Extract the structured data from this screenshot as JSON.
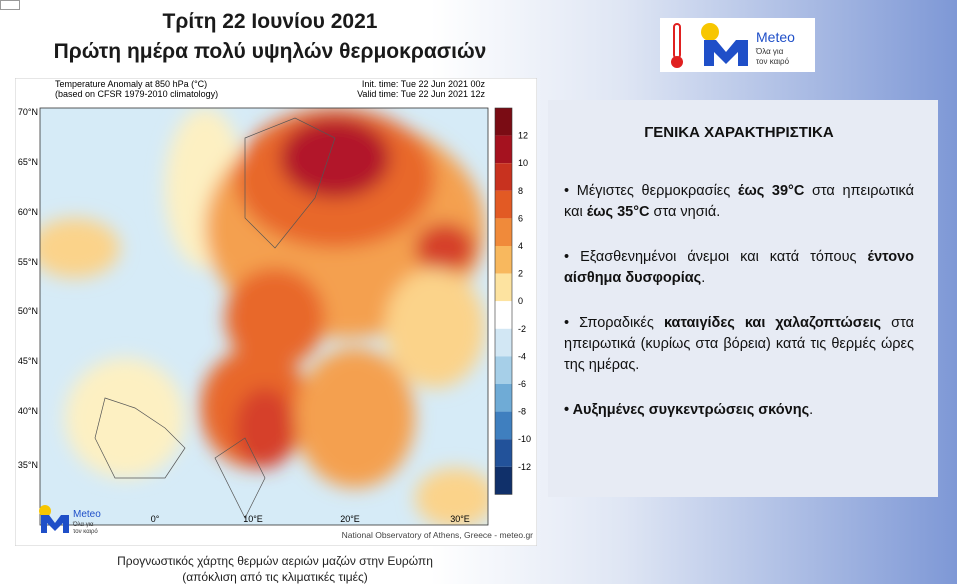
{
  "header": {
    "title": "Τρίτη 22 Ιουνίου 2021",
    "subtitle": "Πρώτη ημέρα πολύ υψηλών θερμοκρασιών"
  },
  "logo": {
    "name": "Meteo",
    "tagline": [
      "Όλα για",
      "τον καιρό"
    ]
  },
  "map": {
    "title_lines": [
      "Temperature Anomaly at 850 hPa (°C)",
      "(based on CFSR 1979-2010 climatology)"
    ],
    "init": "Init. time: Tue 22 Jun 2021 00z",
    "valid": "Valid time: Tue 22 Jun 2021 12z",
    "latitudes": [
      "70°N",
      "65°N",
      "60°N",
      "55°N",
      "50°N",
      "45°N",
      "40°N",
      "35°N"
    ],
    "longitudes": [
      "0°",
      "10°E",
      "20°E",
      "30°E"
    ],
    "colorbar": [
      12,
      10,
      8,
      6,
      4,
      2,
      0,
      -2,
      -4,
      -6,
      -8,
      -10,
      -12
    ],
    "credit": "National Observatory of Athens, Greece - meteo.gr",
    "logo": {
      "name": "Meteo",
      "tagline": [
        "Όλα για",
        "τον καιρό"
      ]
    }
  },
  "panel": {
    "heading": "ΓΕΝΙΚΑ ΧΑΡΑΚΤΗΡΙΣΤΙΚΑ",
    "bullets": [
      [
        {
          "text": "• Μέγιστες θερμοκρασίες "
        },
        {
          "text": "έως 39°C",
          "bold": true
        },
        {
          "text": " στα ηπειρωτικά και "
        },
        {
          "text": "έως 35°C",
          "bold": true
        },
        {
          "text": " στα νησιά."
        }
      ],
      [
        {
          "text": "• Εξασθενημένοι άνεμοι και κατά τόπους "
        },
        {
          "text": "έντονο αίσθημα δυσφορίας",
          "bold": true
        },
        {
          "text": "."
        }
      ],
      [
        {
          "text": "• Σποραδικές "
        },
        {
          "text": "καταιγίδες και χαλαζοπτώσεις",
          "bold": true
        },
        {
          "text": " στα ηπειρωτικά (κυρίως στα βόρεια) κατά τις θερμές ώρες της ημέρας."
        }
      ],
      [
        {
          "text": "• Αυξημένες συγκεντρώσεις σκόνης",
          "bold": true
        },
        {
          "text": "."
        }
      ]
    ]
  },
  "caption": [
    "Προγνωστικός χάρτης θερμών αεριών μαζών στην Ευρώπη",
    "(απόκλιση από τις κλιματικές τιμές)"
  ]
}
